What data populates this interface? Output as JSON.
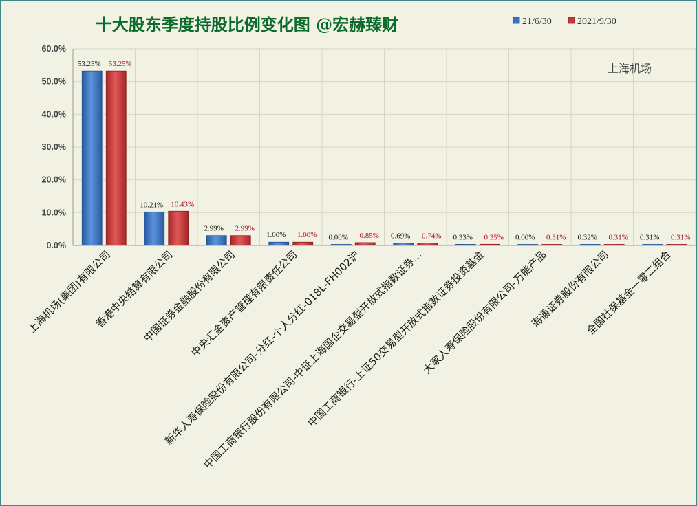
{
  "chart_data": {
    "type": "bar",
    "title": "十大股东季度持股比例变化图 @宏赫臻财",
    "annotation": "上海机场",
    "categories": [
      "上海机场(集团)有限公司",
      "香港中央结算有限公司",
      "中国证券金融股份有限公司",
      "中央汇金资产管理有限责任公司",
      "新华人寿保险股份有限公司-分红-个人分红-018L-FH002沪",
      "中国工商银行股份有限公司-中证上海国企交易型开放式指数证券…",
      "中国工商银行-上证50交易型开放式指数证券投资基金",
      "大家人寿保险股份有限公司-万能产品",
      "海通证券股份有限公司",
      "全国社保基金一零二组合"
    ],
    "series": [
      {
        "name": "21/6/30",
        "color": "#3a73c4",
        "values": [
          53.25,
          10.21,
          2.99,
          1.0,
          0.0,
          0.69,
          0.33,
          0.0,
          0.32,
          0.31
        ],
        "labels": [
          "53.25%",
          "10.21%",
          "2.99%",
          "1.00%",
          "0.00%",
          "0.69%",
          "0.33%",
          "0.00%",
          "0.32%",
          "0.31%"
        ],
        "label_color": "#1a1a1a"
      },
      {
        "name": "2021/9/30",
        "color": "#c83a3a",
        "values": [
          53.25,
          10.43,
          2.99,
          1.0,
          0.85,
          0.74,
          0.35,
          0.31,
          0.31,
          0.31
        ],
        "labels": [
          "53.25%",
          "10.43%",
          "2.99%",
          "1.00%",
          "0.85%",
          "0.74%",
          "0.35%",
          "0.31%",
          "0.31%",
          "0.31%"
        ],
        "label_color": "#b0102a"
      }
    ],
    "y_ticks": [
      "0.0%",
      "10.0%",
      "20.0%",
      "30.0%",
      "40.0%",
      "50.0%",
      "60.0%"
    ],
    "ylim": [
      0,
      60
    ],
    "grid": true,
    "legend_position": "top-right"
  }
}
